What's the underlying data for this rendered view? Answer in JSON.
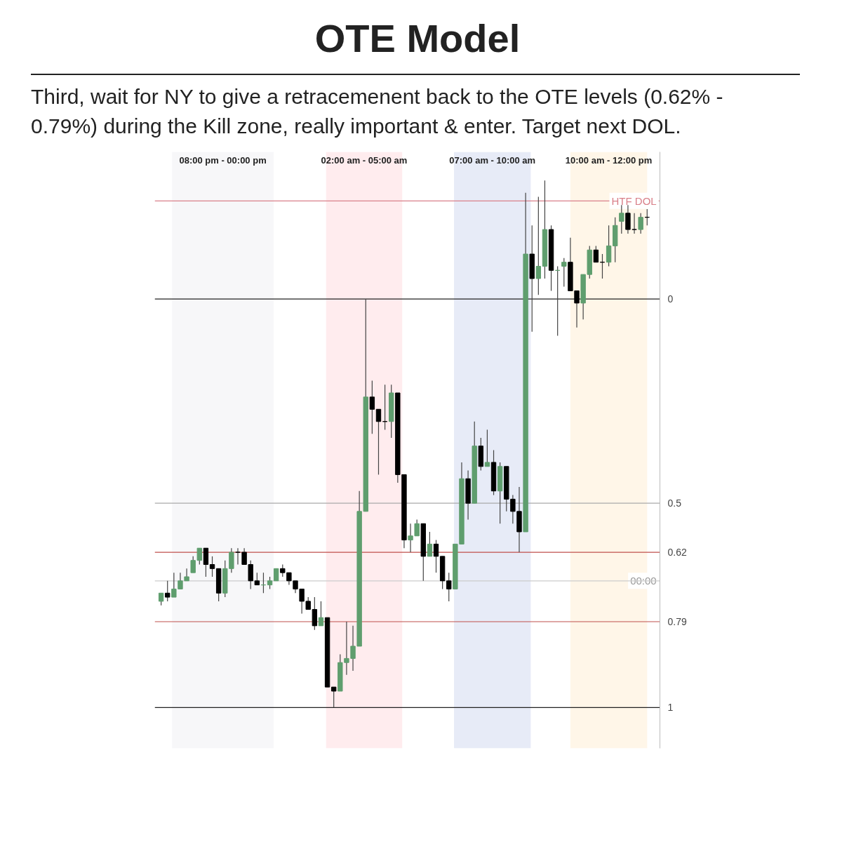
{
  "chart_data": {
    "type": "candlestick",
    "title": "OTE Model",
    "subtitle": "Third, wait for NY to give a retracemenent back to the OTE levels (0.62% - 0.79%) during the Kill zone, really important & enter. Target next DOL.",
    "grid": false,
    "tick_labels": "y",
    "ylim": [
      1.1,
      -0.36
    ],
    "yticks": [
      0,
      0.5,
      0.62,
      0.79,
      1
    ],
    "annotations": [
      "08:00 pm - 00:00 pm",
      "02:00 am - 05:00 am",
      "07:00 am - 10:00 am",
      "10:00 am - 12:00 pm",
      {
        "text": "00:00",
        "y": 0.69
      }
    ],
    "categories": [
      null,
      null,
      null,
      null,
      null,
      null,
      null,
      null,
      null,
      null,
      null,
      null,
      null,
      null,
      null,
      null,
      null,
      null,
      null,
      null,
      null,
      null,
      null,
      null,
      null,
      null,
      null,
      null,
      null,
      null,
      null,
      null,
      null,
      null,
      null,
      null,
      null,
      null,
      null,
      null,
      null,
      null,
      null,
      null,
      null,
      null,
      null,
      null,
      null,
      null,
      null,
      null,
      null,
      null,
      null,
      null,
      null,
      null,
      null,
      null,
      null,
      null,
      null,
      null,
      null,
      null,
      null,
      null,
      null,
      null,
      null,
      null,
      null,
      null,
      null,
      null,
      null
    ],
    "ohlc": [
      [
        0.74,
        0.75,
        0.72,
        0.72
      ],
      [
        0.72,
        0.74,
        0.69,
        0.73
      ],
      [
        0.73,
        0.73,
        0.67,
        0.71
      ],
      [
        0.71,
        0.71,
        0.67,
        0.69
      ],
      [
        0.69,
        0.69,
        0.66,
        0.68
      ],
      [
        0.67,
        0.67,
        0.63,
        0.64
      ],
      [
        0.64,
        0.65,
        0.61,
        0.61
      ],
      [
        0.61,
        0.68,
        0.61,
        0.65
      ],
      [
        0.65,
        0.68,
        0.63,
        0.66
      ],
      [
        0.66,
        0.74,
        0.66,
        0.72
      ],
      [
        0.72,
        0.73,
        0.64,
        0.66
      ],
      [
        0.66,
        0.67,
        0.61,
        0.62
      ],
      [
        0.62,
        0.65,
        0.61,
        0.62
      ],
      [
        0.62,
        0.65,
        0.61,
        0.65
      ],
      [
        0.65,
        0.71,
        0.64,
        0.69
      ],
      [
        0.69,
        0.7,
        0.67,
        0.7
      ],
      [
        0.7,
        0.72,
        0.67,
        0.7
      ],
      [
        0.7,
        0.71,
        0.68,
        0.69
      ],
      [
        0.69,
        0.69,
        0.66,
        0.66
      ],
      [
        0.66,
        0.68,
        0.65,
        0.67
      ],
      [
        0.67,
        0.7,
        0.67,
        0.69
      ],
      [
        0.69,
        0.72,
        0.69,
        0.71
      ],
      [
        0.71,
        0.77,
        0.71,
        0.74
      ],
      [
        0.74,
        0.76,
        0.73,
        0.76
      ],
      [
        0.76,
        0.81,
        0.73,
        0.8
      ],
      [
        0.8,
        0.8,
        0.74,
        0.78
      ],
      [
        0.78,
        0.95,
        0.78,
        0.95
      ],
      [
        0.95,
        1.0,
        0.95,
        0.96
      ],
      [
        0.96,
        0.96,
        0.87,
        0.89
      ],
      [
        0.89,
        0.92,
        0.79,
        0.88
      ],
      [
        0.88,
        0.91,
        0.8,
        0.85
      ],
      [
        0.85,
        0.85,
        0.47,
        0.52
      ],
      [
        0.52,
        0.52,
        0.0,
        0.24
      ],
      [
        0.24,
        0.33,
        0.2,
        0.27
      ],
      [
        0.27,
        0.43,
        0.27,
        0.3
      ],
      [
        0.3,
        0.32,
        0.21,
        0.3
      ],
      [
        0.3,
        0.34,
        0.21,
        0.23
      ],
      [
        0.23,
        0.45,
        0.23,
        0.43
      ],
      [
        0.43,
        0.61,
        0.43,
        0.59
      ],
      [
        0.59,
        0.62,
        0.55,
        0.58
      ],
      [
        0.58,
        0.58,
        0.54,
        0.55
      ],
      [
        0.55,
        0.69,
        0.55,
        0.63
      ],
      [
        0.63,
        0.63,
        0.57,
        0.6
      ],
      [
        0.6,
        0.67,
        0.59,
        0.63
      ],
      [
        0.63,
        0.71,
        0.63,
        0.69
      ],
      [
        0.69,
        0.74,
        0.67,
        0.71
      ],
      [
        0.71,
        0.71,
        0.6,
        0.6
      ],
      [
        0.6,
        0.6,
        0.4,
        0.44
      ],
      [
        0.44,
        0.54,
        0.42,
        0.5
      ],
      [
        0.5,
        0.5,
        0.3,
        0.36
      ],
      [
        0.36,
        0.42,
        0.34,
        0.41
      ],
      [
        0.41,
        0.41,
        0.32,
        0.4
      ],
      [
        0.4,
        0.48,
        0.37,
        0.47
      ],
      [
        0.47,
        0.55,
        0.4,
        0.41
      ],
      [
        0.41,
        0.52,
        0.41,
        0.49
      ],
      [
        0.49,
        0.55,
        0.48,
        0.52
      ],
      [
        0.52,
        0.62,
        0.46,
        0.57
      ],
      [
        0.57,
        0.57,
        -0.26,
        -0.11
      ],
      [
        -0.11,
        0.08,
        -0.18,
        -0.05
      ],
      [
        -0.05,
        -0.01,
        -0.25,
        -0.08
      ],
      [
        -0.08,
        -0.05,
        -0.29,
        -0.17
      ],
      [
        -0.17,
        -0.02,
        -0.18,
        -0.07
      ],
      [
        -0.07,
        0.09,
        -0.08,
        -0.07
      ],
      [
        -0.08,
        -0.03,
        -0.1,
        -0.09
      ],
      [
        -0.09,
        -0.02,
        -0.15,
        -0.02
      ],
      [
        -0.02,
        0.07,
        -0.02,
        0.01
      ],
      [
        0.01,
        0.05,
        -0.06,
        -0.06
      ],
      [
        -0.06,
        -0.05,
        -0.13,
        -0.12
      ],
      [
        -0.12,
        -0.09,
        -0.13,
        -0.09
      ],
      [
        -0.09,
        -0.05,
        -0.11,
        -0.09
      ],
      [
        -0.09,
        -0.08,
        -0.18,
        -0.13
      ],
      [
        -0.13,
        -0.09,
        -0.2,
        -0.18
      ],
      [
        -0.19,
        -0.16,
        -0.23,
        -0.21
      ],
      [
        -0.21,
        -0.16,
        -0.23,
        -0.17
      ],
      [
        -0.17,
        -0.16,
        -0.21,
        -0.17
      ],
      [
        -0.17,
        -0.16,
        -0.21,
        -0.2
      ],
      [
        -0.2,
        -0.18,
        -0.22,
        -0.2
      ]
    ],
    "colors": [
      "#5f9e6e",
      "#000000",
      "#5f9e6e",
      "#5f9e6e",
      "#5f9e6e",
      "#5f9e6e",
      "#5f9e6e",
      "#000000",
      "#000000",
      "#000000",
      "#5f9e6e",
      "#5f9e6e",
      "#000000",
      "#000000",
      "#000000",
      "#000000",
      "#5f9e6e",
      "#5f9e6e",
      "#5f9e6e",
      "#000000",
      "#000000",
      "#000000",
      "#000000",
      "#000000",
      "#000000",
      "#5f9e6e",
      "#000000",
      "#000000",
      "#5f9e6e",
      "#5f9e6e",
      "#5f9e6e",
      "#5f9e6e",
      "#5f9e6e",
      "#000000",
      "#000000",
      "#000000",
      "#5f9e6e",
      "#000000",
      "#000000",
      "#5f9e6e",
      "#5f9e6e",
      "#000000",
      "#5f9e6e",
      "#000000",
      "#000000",
      "#000000",
      "#5f9e6e",
      "#5f9e6e",
      "#000000",
      "#5f9e6e",
      "#000000",
      "#5f9e6e",
      "#000000",
      "#5f9e6e",
      "#000000",
      "#000000",
      "#000000",
      "#5f9e6e",
      "#000000",
      "#5f9e6e",
      "#5f9e6e",
      "#000000",
      "#5f9e6e",
      "#5f9e6e",
      "#000000",
      "#000000",
      "#5f9e6e",
      "#5f9e6e",
      "#000000",
      "#000000",
      "#5f9e6e",
      "#5f9e6e",
      "#5f9e6e",
      "#000000",
      "#000000",
      "#5f9e6e",
      "#000000"
    ],
    "ref_lines": [
      {
        "axis": "y",
        "value": -0.24,
        "label": "HTF DOL",
        "color": "#d9808a"
      },
      {
        "axis": "y",
        "value": 0,
        "color": "#222222"
      },
      {
        "axis": "y",
        "value": 0.5,
        "color": "#aaaaaa"
      },
      {
        "axis": "y",
        "value": 0.62,
        "color": "#c0504d"
      },
      {
        "axis": "y",
        "value": 0.69,
        "color": "#cccccc"
      },
      {
        "axis": "y",
        "value": 0.79,
        "color": "#c0504d"
      },
      {
        "axis": "y",
        "value": 1,
        "color": "#222222"
      }
    ]
  }
}
